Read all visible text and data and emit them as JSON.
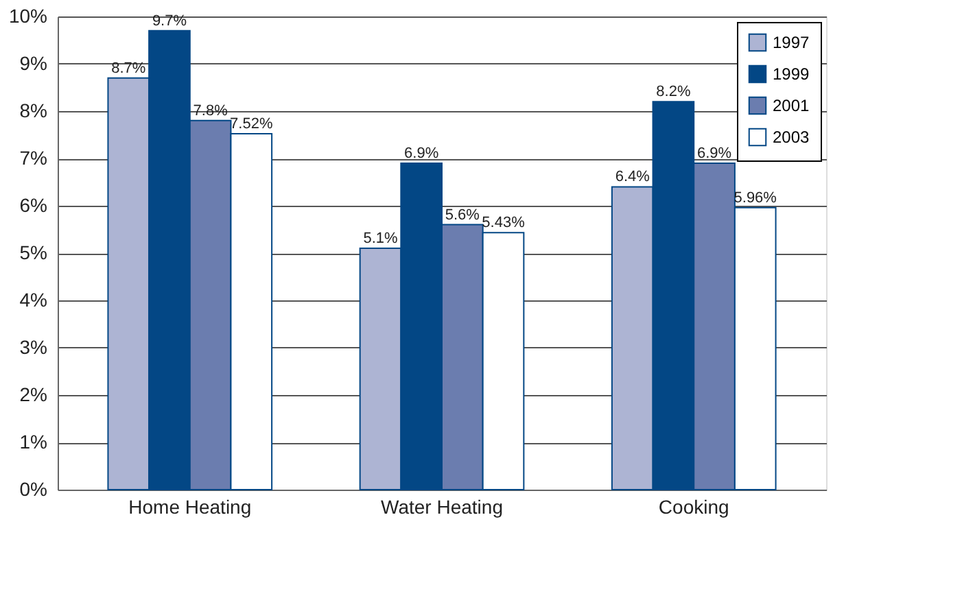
{
  "chart_data": {
    "type": "bar",
    "categories": [
      "Home Heating",
      "Water Heating",
      "Cooking"
    ],
    "series": [
      {
        "name": "1997",
        "color": "#adb4d3",
        "values": [
          8.7,
          5.1,
          6.4
        ],
        "value_labels": [
          "8.7%",
          "5.1%",
          "6.4%"
        ]
      },
      {
        "name": "1999",
        "color": "#034785",
        "values": [
          9.7,
          6.9,
          8.2
        ],
        "value_labels": [
          "9.7%",
          "6.9%",
          "8.2%"
        ]
      },
      {
        "name": "2001",
        "color": "#6b7daf",
        "values": [
          7.8,
          5.6,
          6.9
        ],
        "value_labels": [
          "7.8%",
          "5.6%",
          "6.9%"
        ]
      },
      {
        "name": "2003",
        "color": "#ffffff",
        "values": [
          7.52,
          5.43,
          5.96
        ],
        "value_labels": [
          "7.52%",
          "5.43%",
          "5.96%"
        ]
      }
    ],
    "ylim": [
      0,
      10
    ],
    "yticks": [
      {
        "value": 0,
        "label": "0%"
      },
      {
        "value": 1,
        "label": "1%"
      },
      {
        "value": 2,
        "label": "2%"
      },
      {
        "value": 3,
        "label": "3%"
      },
      {
        "value": 4,
        "label": "4%"
      },
      {
        "value": 5,
        "label": "5%"
      },
      {
        "value": 6,
        "label": "6%"
      },
      {
        "value": 7,
        "label": "7%"
      },
      {
        "value": 8,
        "label": "8%"
      },
      {
        "value": 9,
        "label": "9%"
      },
      {
        "value": 10,
        "label": "10%"
      }
    ],
    "grid": "y",
    "legend": "top right"
  }
}
